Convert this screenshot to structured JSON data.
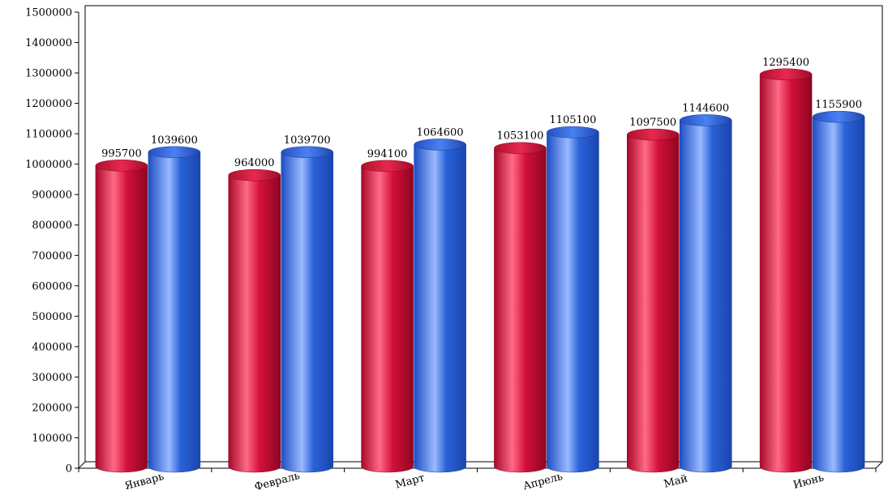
{
  "chart_data": {
    "type": "bar",
    "style": "3d-cylinder",
    "categories": [
      "Январь",
      "Февраль",
      "Март",
      "Апрель",
      "Май",
      "Июнь"
    ],
    "series": [
      {
        "values": [
          995700,
          964000,
          994100,
          1053100,
          1097500,
          1295400
        ],
        "labels": [
          "995700",
          "964000",
          "994100",
          "1053100",
          "1097500",
          "1295400"
        ],
        "color": "#d4103a"
      },
      {
        "values": [
          1039600,
          1039700,
          1064600,
          1105100,
          1144600,
          1155900
        ],
        "labels": [
          "1039600",
          "1039700",
          "1064600",
          "1105100",
          "1144600",
          "1155900"
        ],
        "color": "#2a62d8"
      }
    ],
    "ylim": [
      0,
      1500000
    ],
    "yticks": [
      "0",
      "100000",
      "200000",
      "300000",
      "400000",
      "500000",
      "600000",
      "700000",
      "800000",
      "900000",
      "1000000",
      "1100000",
      "1200000",
      "1300000",
      "1400000",
      "1500000"
    ],
    "grid": false,
    "legend": "none"
  }
}
